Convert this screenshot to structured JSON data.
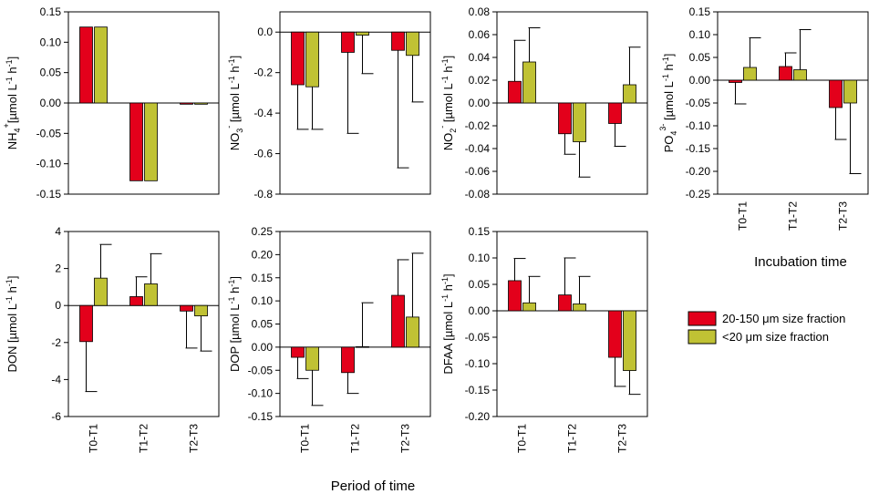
{
  "colors": {
    "s1": "#e3001b",
    "s2": "#c0c234",
    "axis": "#000000",
    "background": "#ffffff"
  },
  "legend": {
    "position": "right",
    "entries": [
      {
        "main": "20-150 ",
        "unit": "μm",
        "rest": " size fraction"
      },
      {
        "main": "<20 ",
        "unit": "μm",
        "rest": " size fraction"
      }
    ]
  },
  "labels": {
    "period_of_time": "Period of time",
    "incubation_time": "Incubation time"
  },
  "chart_data": [
    {
      "id": "nh4",
      "type": "bar",
      "ylabel": {
        "pre": "NH",
        "sub": "4",
        "sup": "+",
        "unit": "[µmol L",
        "exp1": "-1",
        "mid": " h",
        "exp2": "-1",
        "close": "]"
      },
      "categories": [
        "T0-T1",
        "T1-T2",
        "T2-T3"
      ],
      "show_xticks": false,
      "ylim": [
        -0.15,
        0.15
      ],
      "yticks": [
        -0.15,
        -0.1,
        -0.05,
        0.0,
        0.05,
        0.1,
        0.15
      ],
      "ytick_labels": [
        "-0.15",
        "-0.10",
        "-0.05",
        "0.00",
        "0.05",
        "0.10",
        "0.15"
      ],
      "series": [
        {
          "name": "20-150 µm size fraction",
          "values": [
            0.125,
            -0.128,
            -0.002
          ],
          "err": [
            0,
            0,
            0
          ]
        },
        {
          "name": "<20 µm size fraction",
          "values": [
            0.125,
            -0.128,
            -0.002
          ],
          "err": [
            0,
            0,
            0
          ]
        }
      ]
    },
    {
      "id": "no3",
      "type": "bar",
      "ylabel": {
        "pre": "NO",
        "sub": "3",
        "sup": "-",
        "unit": " [µmol L",
        "exp1": "-1",
        "mid": " h",
        "exp2": "-1",
        "close": "]"
      },
      "categories": [
        "T0-T1",
        "T1-T2",
        "T2-T3"
      ],
      "show_xticks": false,
      "ylim": [
        -0.8,
        0.1
      ],
      "yticks": [
        -0.8,
        -0.6,
        -0.4,
        -0.2,
        0.0
      ],
      "ytick_labels": [
        "-0.8",
        "-0.6",
        "-0.4",
        "-0.2",
        "0.0"
      ],
      "series": [
        {
          "name": "20-150 µm size fraction",
          "values": [
            -0.26,
            -0.1,
            -0.09
          ],
          "err": [
            0.22,
            0.4,
            0.58
          ]
        },
        {
          "name": "<20 µm size fraction",
          "values": [
            -0.27,
            -0.015,
            -0.115
          ],
          "err": [
            0.21,
            0.19,
            0.23
          ]
        }
      ]
    },
    {
      "id": "no2",
      "type": "bar",
      "ylabel": {
        "pre": "NO",
        "sub": "2",
        "sup": "-",
        "unit": " [µmol L",
        "exp1": "-1",
        "mid": " h",
        "exp2": "-1",
        "close": "]"
      },
      "categories": [
        "T0-T1",
        "T1-T2",
        "T2-T3"
      ],
      "show_xticks": false,
      "ylim": [
        -0.08,
        0.08
      ],
      "yticks": [
        -0.08,
        -0.06,
        -0.04,
        -0.02,
        0.0,
        0.02,
        0.04,
        0.06,
        0.08
      ],
      "ytick_labels": [
        "-0.08",
        "-0.06",
        "-0.04",
        "-0.02",
        "0.00",
        "0.02",
        "0.04",
        "0.06",
        "0.08"
      ],
      "series": [
        {
          "name": "20-150 µm size fraction",
          "values": [
            0.019,
            -0.027,
            -0.018
          ],
          "err": [
            0.036,
            0.018,
            0.02
          ]
        },
        {
          "name": "<20 µm size fraction",
          "values": [
            0.036,
            -0.034,
            0.016
          ],
          "err": [
            0.03,
            0.031,
            0.033
          ]
        }
      ]
    },
    {
      "id": "po4",
      "type": "bar",
      "ylabel": {
        "pre": "PO",
        "sub": "4",
        "sup": "3-",
        "unit": " [µmol L",
        "exp1": "-1",
        "mid": " h",
        "exp2": "-1",
        "close": "]"
      },
      "categories": [
        "T0-T1",
        "T1-T2",
        "T2-T3"
      ],
      "show_xticks": true,
      "ylim": [
        -0.25,
        0.15
      ],
      "yticks": [
        -0.25,
        -0.2,
        -0.15,
        -0.1,
        -0.05,
        0.0,
        0.05,
        0.1,
        0.15
      ],
      "ytick_labels": [
        "-0.25",
        "-0.20",
        "-0.15",
        "-0.10",
        "-0.05",
        "0.00",
        "0.05",
        "0.10",
        "0.15"
      ],
      "series": [
        {
          "name": "20-150 µm size fraction",
          "values": [
            -0.005,
            0.03,
            -0.06
          ],
          "err": [
            0.047,
            0.03,
            0.07
          ]
        },
        {
          "name": "<20 µm size fraction",
          "values": [
            0.028,
            0.023,
            -0.05
          ],
          "err": [
            0.065,
            0.088,
            0.155
          ]
        }
      ]
    },
    {
      "id": "don",
      "type": "bar",
      "ylabel": {
        "pre": "DON [µmol L",
        "sub": "",
        "sup": "",
        "unit": "",
        "exp1": "-1",
        "mid": " h",
        "exp2": "-1",
        "close": "]"
      },
      "categories": [
        "T0-T1",
        "T1-T2",
        "T2-T3"
      ],
      "show_xticks": true,
      "ylim": [
        -6,
        4
      ],
      "yticks": [
        -6,
        -4,
        -2,
        0,
        2,
        4
      ],
      "ytick_labels": [
        "-6",
        "-4",
        "-2",
        "0",
        "2",
        "4"
      ],
      "series": [
        {
          "name": "20-150 µm size fraction",
          "values": [
            -1.95,
            0.48,
            -0.3
          ],
          "err": [
            2.7,
            1.07,
            2.0
          ]
        },
        {
          "name": "<20 µm size fraction",
          "values": [
            1.48,
            1.17,
            -0.56
          ],
          "err": [
            1.82,
            1.63,
            1.9
          ]
        }
      ]
    },
    {
      "id": "dop",
      "type": "bar",
      "ylabel": {
        "pre": "DOP  [µmol L",
        "sub": "",
        "sup": "",
        "unit": "",
        "exp1": "-1",
        "mid": " h",
        "exp2": "-1",
        "close": "]"
      },
      "categories": [
        "T0-T1",
        "T1-T2",
        "T2-T3"
      ],
      "show_xticks": true,
      "ylim": [
        -0.15,
        0.25
      ],
      "yticks": [
        -0.15,
        -0.1,
        -0.05,
        0.0,
        0.05,
        0.1,
        0.15,
        0.2,
        0.25
      ],
      "ytick_labels": [
        "-0.15",
        "-0.10",
        "-0.05",
        "0.00",
        "0.05",
        "0.10",
        "0.15",
        "0.20",
        "0.25"
      ],
      "series": [
        {
          "name": "20-150 µm size fraction",
          "values": [
            -0.022,
            -0.055,
            0.112
          ],
          "err": [
            0.046,
            0.045,
            0.077
          ]
        },
        {
          "name": "<20 µm size fraction",
          "values": [
            -0.05,
            0.001,
            0.065
          ],
          "err": [
            0.076,
            0.095,
            0.138
          ]
        }
      ]
    },
    {
      "id": "dfaa",
      "type": "bar",
      "ylabel": {
        "pre": "DFAA  [µmol L",
        "sub": "",
        "sup": "",
        "unit": "",
        "exp1": "-1",
        "mid": " h",
        "exp2": "-1",
        "close": "]"
      },
      "categories": [
        "T0-T1",
        "T1-T2",
        "T2-T3"
      ],
      "show_xticks": true,
      "ylim": [
        -0.2,
        0.15
      ],
      "yticks": [
        -0.2,
        -0.15,
        -0.1,
        -0.05,
        0.0,
        0.05,
        0.1,
        0.15
      ],
      "ytick_labels": [
        "-0.20",
        "-0.15",
        "-0.10",
        "-0.05",
        "0.00",
        "0.05",
        "0.10",
        "0.15"
      ],
      "series": [
        {
          "name": "20-150 µm size fraction",
          "values": [
            0.057,
            0.03,
            -0.088
          ],
          "err": [
            0.042,
            0.07,
            0.055
          ]
        },
        {
          "name": "<20 µm size fraction",
          "values": [
            0.015,
            0.013,
            -0.113
          ],
          "err": [
            0.05,
            0.052,
            0.045
          ]
        }
      ]
    }
  ]
}
